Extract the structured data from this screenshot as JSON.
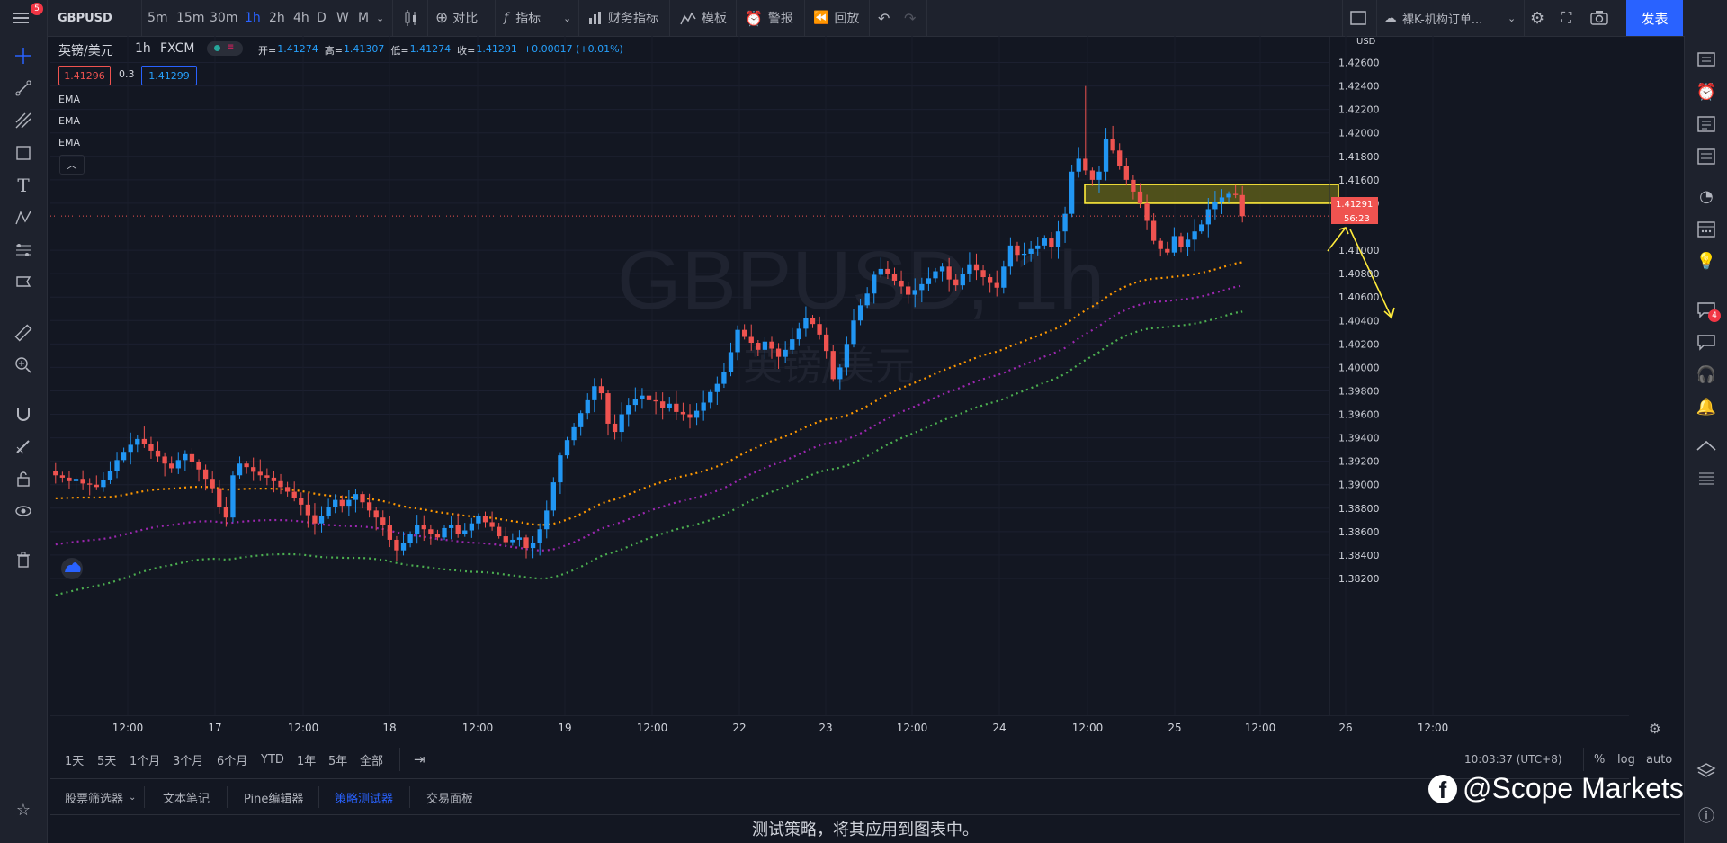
{
  "topbar": {
    "symbol": "GBPUSD",
    "intervals": [
      "5m",
      "15m",
      "30m",
      "1h",
      "2h",
      "4h",
      "D",
      "W",
      "M"
    ],
    "active_interval": "1h",
    "compare_label": "对比",
    "indicators_label": "指标",
    "financials_label": "财务指标",
    "templates_label": "模板",
    "alerts_label": "警报",
    "replay_label": "回放",
    "layout_name": "裸K-机构订单...",
    "publish_label": "发表",
    "menu_badge": "5"
  },
  "legend": {
    "title": "英镑/美元",
    "interval": "1h",
    "source": "FXCM",
    "open_label": "开=",
    "open": "1.41274",
    "high_label": "高=",
    "high": "1.41307",
    "low_label": "低=",
    "low": "1.41274",
    "close_label": "收=",
    "close": "1.41291",
    "change": "+0.00017 (+0.01%)",
    "bid": "1.41296",
    "spread": "0.3",
    "ask": "1.41299",
    "indicators": [
      "EMA",
      "EMA",
      "EMA"
    ]
  },
  "watermark": {
    "symbol": "GBPUSD, 1h",
    "name": "英镑/美元"
  },
  "price_axis": {
    "currency": "USD",
    "labels": [
      "1.42600",
      "1.42400",
      "1.42200",
      "1.42000",
      "1.41800",
      "1.41600",
      "1.41400",
      "1.41000",
      "1.40800",
      "1.40600",
      "1.40400",
      "1.40200",
      "1.40000",
      "1.39800",
      "1.39600",
      "1.39400",
      "1.39200",
      "1.39000",
      "1.38800",
      "1.38600",
      "1.38400",
      "1.38200"
    ],
    "current_price": "1.41291",
    "countdown": "56:23"
  },
  "time_axis": {
    "labels": [
      "12:00",
      "17",
      "12:00",
      "18",
      "12:00",
      "19",
      "12:00",
      "22",
      "23",
      "12:00",
      "24",
      "12:00",
      "25",
      "12:00",
      "26",
      "12:00"
    ]
  },
  "bottom_toolbar": {
    "ranges": [
      "1天",
      "5天",
      "1个月",
      "3个月",
      "6个月",
      "YTD",
      "1年",
      "5年",
      "全部"
    ],
    "clock": "10:03:37 (UTC+8)",
    "percent_label": "%",
    "log_label": "log",
    "auto_label": "auto"
  },
  "panel_tabs": {
    "items": [
      "股票筛选器",
      "文本笔记",
      "Pine编辑器",
      "策略测试器",
      "交易面板"
    ],
    "active": "策略测试器"
  },
  "panel_message": "测试策略，将其应用到图表中。",
  "right_badge": "4",
  "brand_watermark": "@Scope Markets",
  "colors": {
    "up": "#2196f3",
    "down": "#ef5350",
    "ema_fast": "#ff9800",
    "ema_mid": "#9c27b0",
    "ema_slow": "#4caf50",
    "zone_fill": "#5b5a1a",
    "zone_border": "#ffeb3b",
    "accent": "#2962ff"
  },
  "chart_data": {
    "type": "candlestick",
    "timeframe": "1h",
    "ylim": [
      1.381,
      1.4275
    ],
    "close_series": [
      1.3908,
      1.3906,
      1.3903,
      1.3905,
      1.3901,
      1.39,
      1.3898,
      1.3904,
      1.3912,
      1.3921,
      1.3928,
      1.3934,
      1.3939,
      1.3935,
      1.3929,
      1.3924,
      1.3918,
      1.3914,
      1.3921,
      1.3926,
      1.3919,
      1.3913,
      1.3905,
      1.3897,
      1.3881,
      1.3872,
      1.3908,
      1.3918,
      1.3915,
      1.3911,
      1.3908,
      1.3906,
      1.3903,
      1.3898,
      1.3894,
      1.3889,
      1.3883,
      1.3874,
      1.3867,
      1.3873,
      1.3881,
      1.3887,
      1.3882,
      1.3887,
      1.3892,
      1.3885,
      1.3878,
      1.3872,
      1.3866,
      1.3853,
      1.3844,
      1.385,
      1.3858,
      1.3866,
      1.3862,
      1.3858,
      1.3855,
      1.3863,
      1.3866,
      1.3858,
      1.3861,
      1.3867,
      1.3873,
      1.3868,
      1.3864,
      1.3856,
      1.3851,
      1.3853,
      1.3855,
      1.3846,
      1.385,
      1.3862,
      1.3878,
      1.3902,
      1.3925,
      1.3938,
      1.3949,
      1.3961,
      1.3972,
      1.3984,
      1.3978,
      1.3952,
      1.3945,
      1.396,
      1.3968,
      1.3973,
      1.3976,
      1.3972,
      1.3971,
      1.3965,
      1.3969,
      1.3962,
      1.396,
      1.3957,
      1.3963,
      1.397,
      1.3979,
      1.3986,
      1.3996,
      1.4013,
      1.4032,
      1.4026,
      1.4021,
      1.4015,
      1.4022,
      1.4016,
      1.4009,
      1.4015,
      1.4024,
      1.4033,
      1.4042,
      1.4037,
      1.4028,
      1.4014,
      1.399,
      1.4,
      1.402,
      1.404,
      1.4053,
      1.4063,
      1.4079,
      1.4084,
      1.408,
      1.4074,
      1.4069,
      1.4062,
      1.4066,
      1.4071,
      1.4076,
      1.4082,
      1.4086,
      1.4075,
      1.407,
      1.408,
      1.4088,
      1.4083,
      1.4077,
      1.4072,
      1.4068,
      1.4086,
      1.4104,
      1.4096,
      1.4097,
      1.4101,
      1.4104,
      1.411,
      1.4103,
      1.4116,
      1.4131,
      1.4167,
      1.4178,
      1.4168,
      1.416,
      1.4167,
      1.4195,
      1.4185,
      1.4172,
      1.416,
      1.415,
      1.414,
      1.4125,
      1.4108,
      1.4101,
      1.4098,
      1.4112,
      1.4103,
      1.4109,
      1.4116,
      1.4122,
      1.4135,
      1.4141,
      1.4145,
      1.4148,
      1.4147,
      1.4129
    ],
    "ema_fast_range": [
      1.3858,
      1.4103
    ],
    "ema_mid_range": [
      1.384,
      1.4078
    ],
    "ema_slow_range": [
      1.3822,
      1.4052
    ],
    "zone": {
      "from": 1.414,
      "to": 1.4156
    }
  }
}
